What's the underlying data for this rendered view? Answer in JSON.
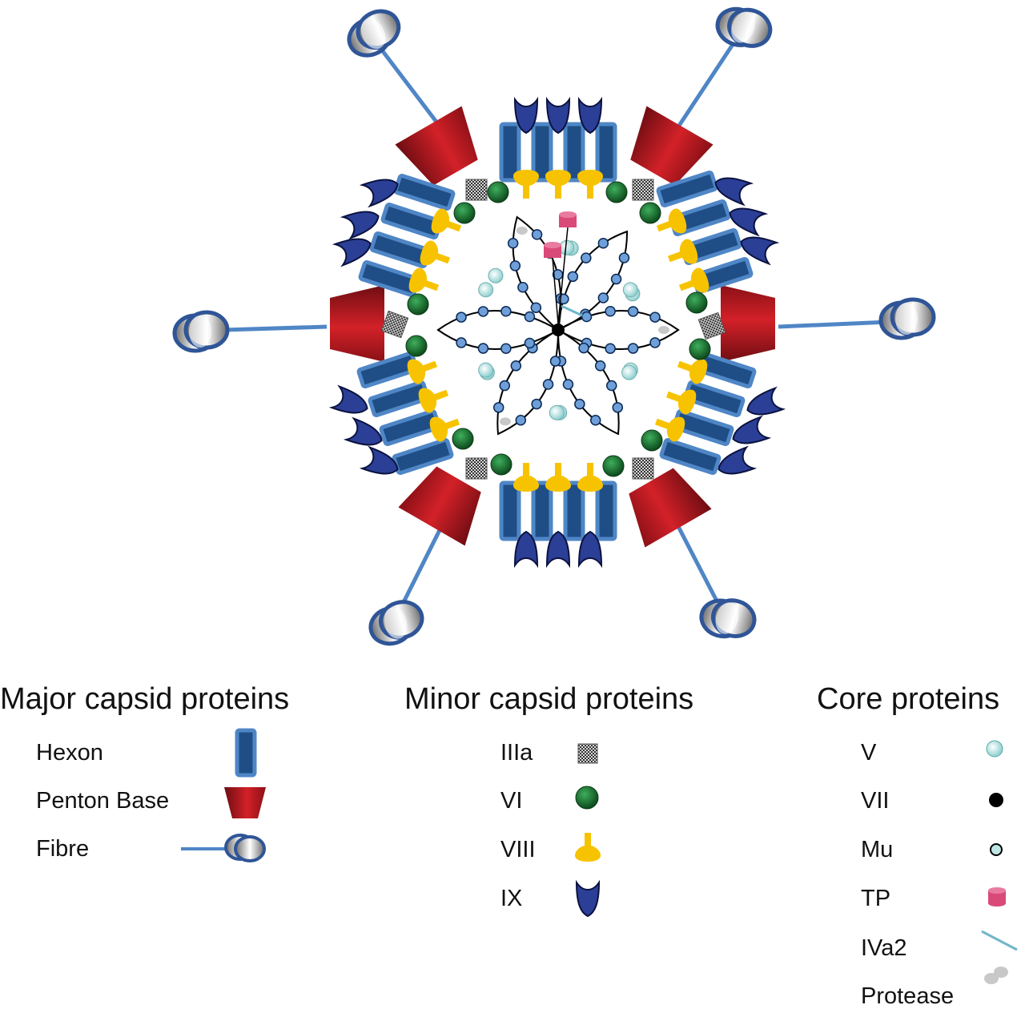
{
  "legend": {
    "major": {
      "title": "Major capsid proteins",
      "items": [
        {
          "key": "hexon",
          "label": "Hexon"
        },
        {
          "key": "penton",
          "label": "Penton Base"
        },
        {
          "key": "fibre",
          "label": "Fibre"
        }
      ]
    },
    "minor": {
      "title": "Minor capsid proteins",
      "items": [
        {
          "key": "iiia",
          "label": "IIIa"
        },
        {
          "key": "vi",
          "label": "VI"
        },
        {
          "key": "viii",
          "label": "VIII"
        },
        {
          "key": "ix",
          "label": "IX"
        }
      ]
    },
    "core": {
      "title": "Core proteins",
      "items": [
        {
          "key": "v",
          "label": "V"
        },
        {
          "key": "vii",
          "label": "VII"
        },
        {
          "key": "mu",
          "label": "Mu"
        },
        {
          "key": "tp",
          "label": "TP"
        },
        {
          "key": "iva2",
          "label": "IVa2"
        },
        {
          "key": "protease",
          "label": "Protease"
        }
      ]
    }
  },
  "colors": {
    "hexon_fill": "#1f4e86",
    "hexon_stroke": "#4f86c6",
    "penton_dark": "#6e0d12",
    "penton_light": "#d32128",
    "fibre_line": "#4f86c6",
    "fibre_knob": "#2f5597",
    "vi_green": "#1f7a34",
    "viii_yellow": "#f7c300",
    "ix_blue": "#2b3f96",
    "v_cyan": "#bfe6e6",
    "vii_black": "#000000",
    "mu_blue": "#6f9fd8",
    "tp_pink": "#d94a78",
    "iva2_line": "#6fb7c9",
    "protease_grey": "#c8c8c8",
    "iiia_grey": "#555555"
  }
}
